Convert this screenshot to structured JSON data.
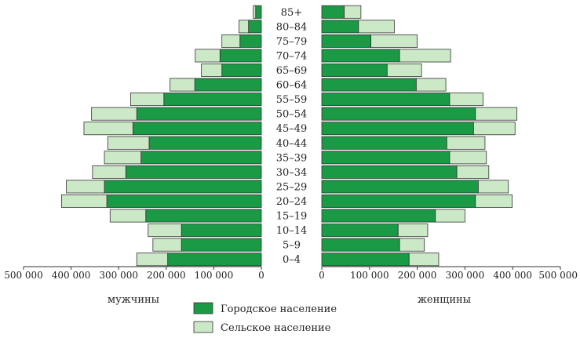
{
  "chart_data": {
    "type": "bar",
    "layout": "population-pyramid",
    "categories": [
      "0–4",
      "5–9",
      "10–14",
      "15–19",
      "20–24",
      "25–29",
      "30–34",
      "35–39",
      "40–44",
      "45–49",
      "50–54",
      "55–59",
      "60–64",
      "65–69",
      "70–74",
      "75–79",
      "80–84",
      "85+"
    ],
    "men": {
      "label": "мужчины",
      "urban": [
        197000,
        168000,
        168000,
        243000,
        325000,
        330000,
        285000,
        253000,
        236000,
        270000,
        262000,
        205000,
        140000,
        83000,
        87000,
        45000,
        27000,
        12000
      ],
      "rural": [
        65000,
        60000,
        70000,
        75000,
        95000,
        80000,
        70000,
        77000,
        87000,
        103000,
        95000,
        70000,
        52000,
        43000,
        52000,
        38000,
        20000,
        5000
      ]
    },
    "women": {
      "label": "женщины",
      "urban": [
        183000,
        163000,
        160000,
        238000,
        322000,
        328000,
        283000,
        268000,
        262000,
        318000,
        322000,
        268000,
        198000,
        137000,
        163000,
        103000,
        77000,
        47000
      ],
      "rural": [
        62000,
        52000,
        62000,
        62000,
        77000,
        63000,
        67000,
        77000,
        80000,
        87000,
        87000,
        70000,
        62000,
        72000,
        107000,
        97000,
        75000,
        35000
      ]
    },
    "series": [
      {
        "name": "Городское население",
        "color": "#1a9a45"
      },
      {
        "name": "Сельское население",
        "color": "#cbe8c7"
      }
    ],
    "left_axis": {
      "ticks": [
        "500 000",
        "400 000",
        "300 000",
        "200 000",
        "100 000",
        "0"
      ],
      "max": 500000
    },
    "right_axis": {
      "ticks": [
        "0",
        "100 000",
        "200 000",
        "300 000",
        "400 000",
        "500 000"
      ],
      "max": 500000
    },
    "legend_placement": "bottom-center",
    "grid": false
  }
}
